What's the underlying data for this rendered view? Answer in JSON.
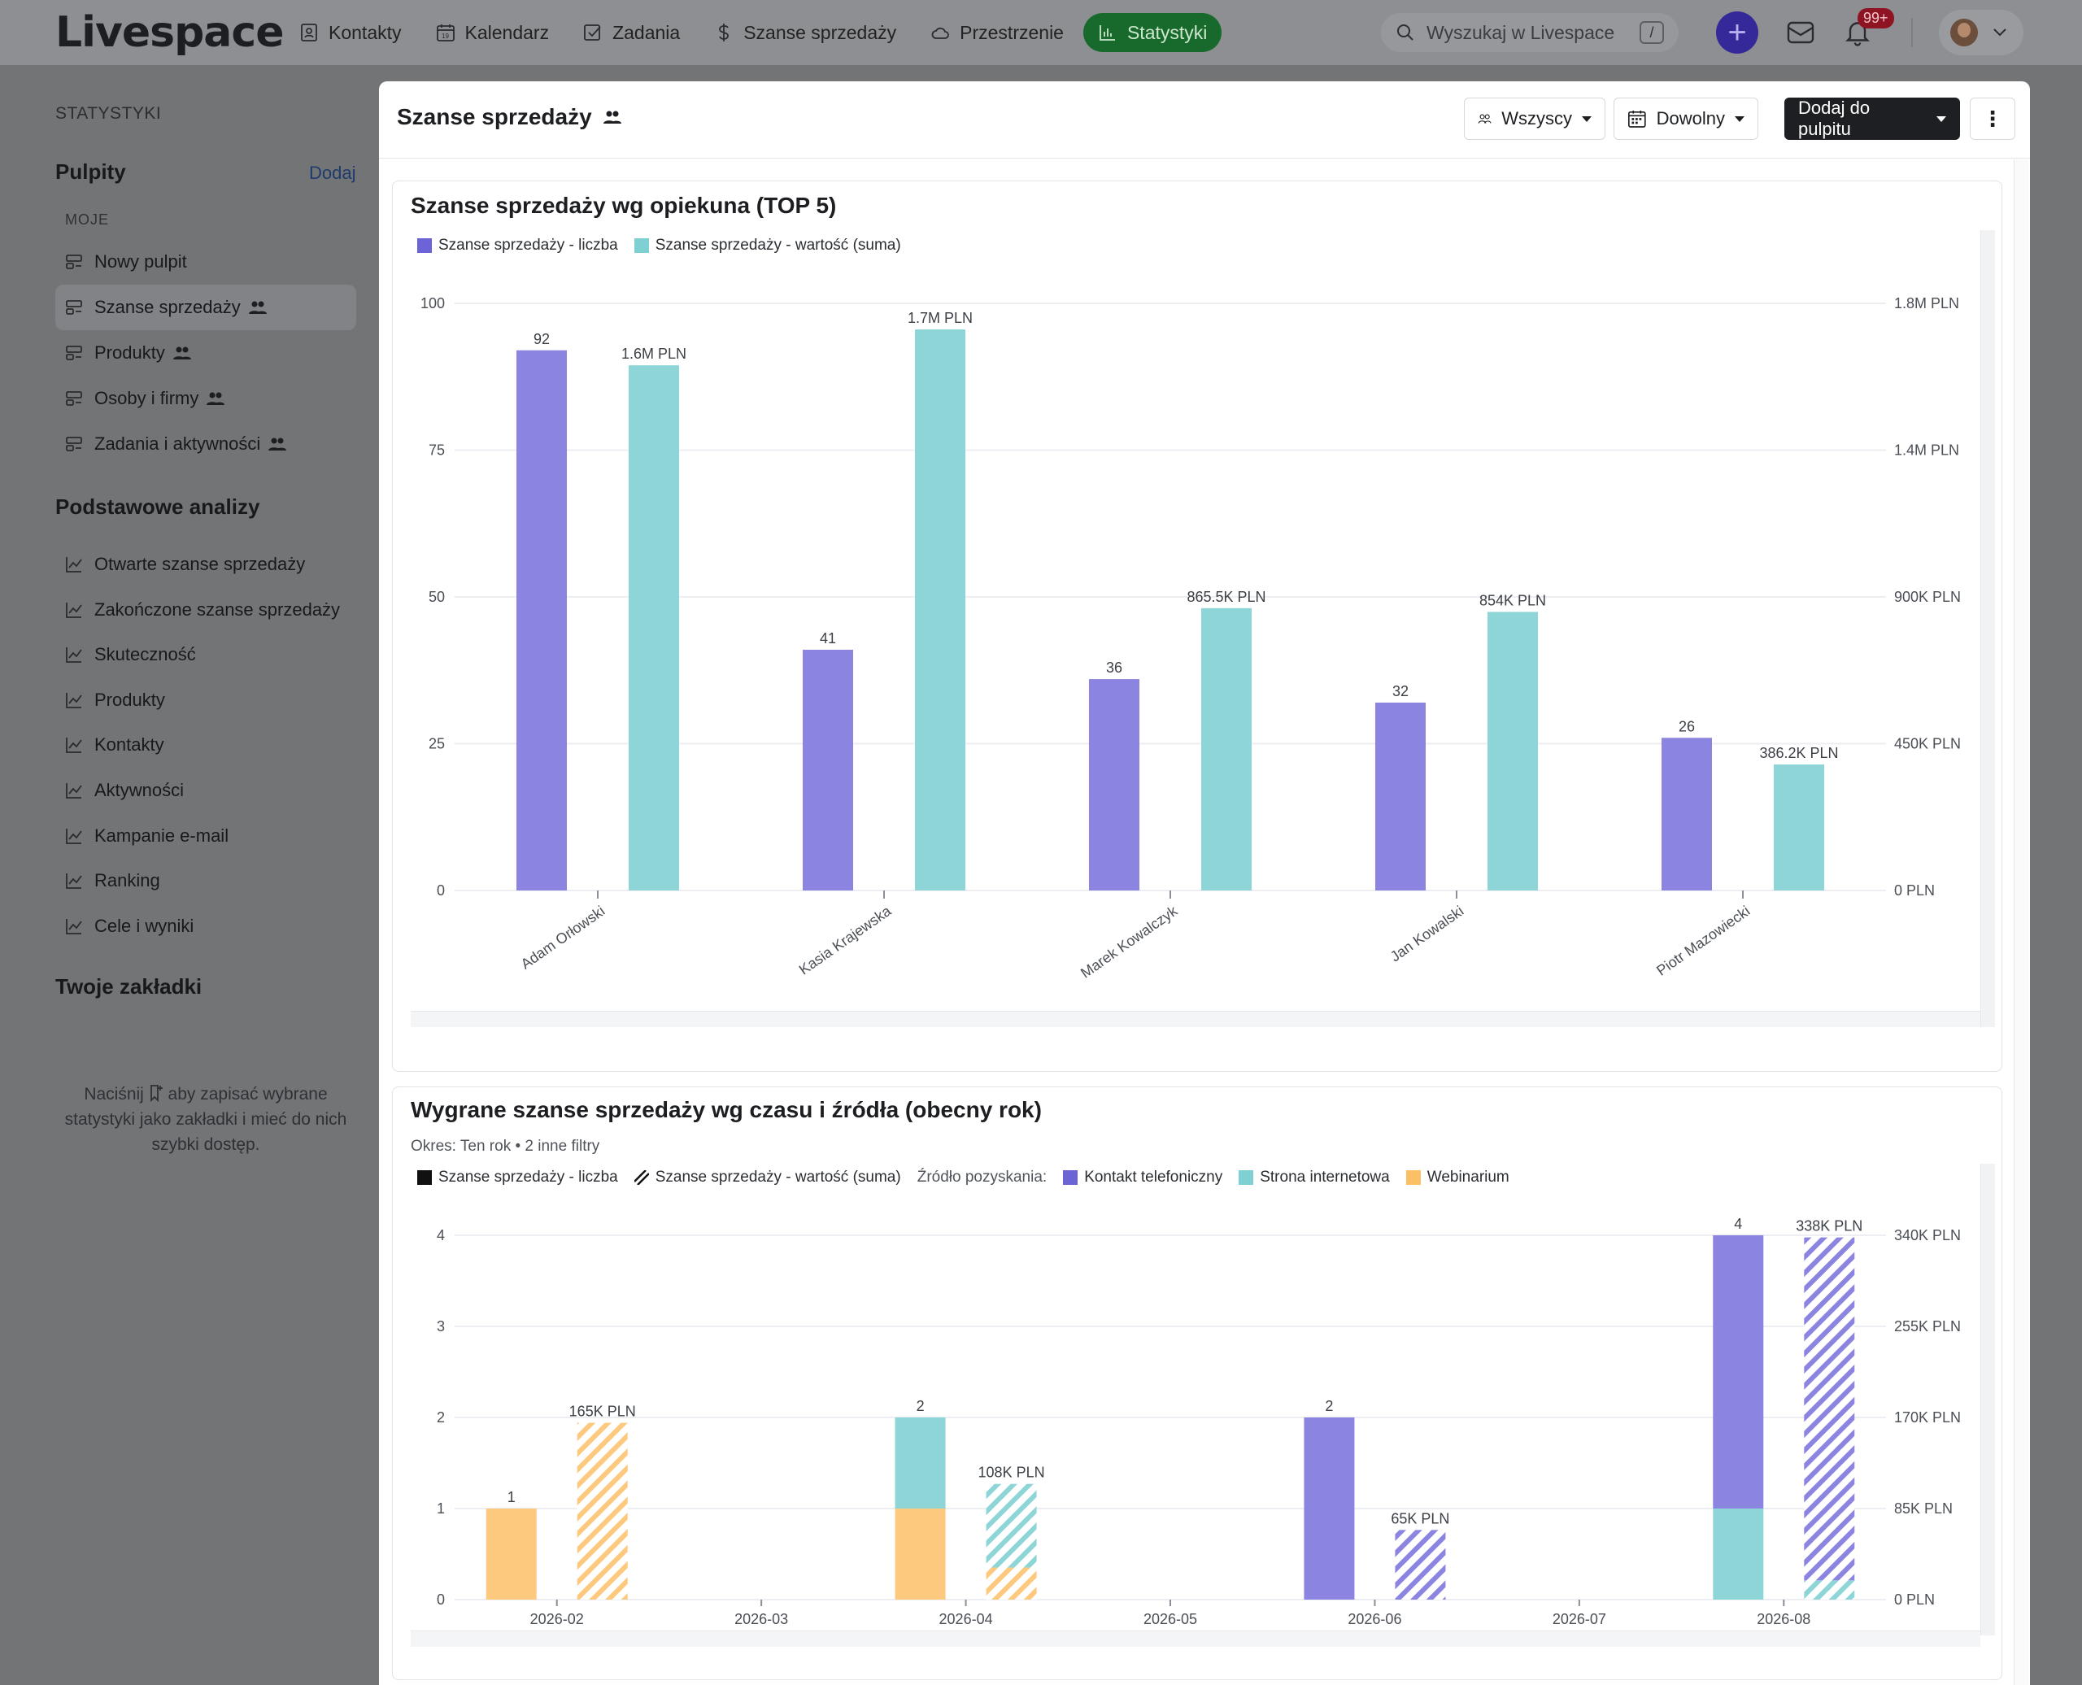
{
  "app": {
    "logo": "Livespace",
    "nav": [
      {
        "label": "Kontakty",
        "icon": "contact-icon"
      },
      {
        "label": "Kalendarz",
        "icon": "calendar-icon"
      },
      {
        "label": "Zadania",
        "icon": "tasks-icon"
      },
      {
        "label": "Szanse sprzedaży",
        "icon": "dollar-icon"
      },
      {
        "label": "Przestrzenie",
        "icon": "cloud-icon"
      },
      {
        "label": "Statystyki",
        "icon": "stats-icon",
        "active": true
      }
    ],
    "search_placeholder": "Wyszukaj w Livespace",
    "search_shortcut": "/",
    "notifications_badge": "99+"
  },
  "sidebar": {
    "section_label": "STATYSTYKI",
    "dashboards_heading": "Pulpity",
    "add_label": "Dodaj",
    "mine_label": "MOJE",
    "dashboards": [
      {
        "label": "Nowy pulpit",
        "shared": false
      },
      {
        "label": "Szanse sprzedaży",
        "shared": true,
        "active": true
      },
      {
        "label": "Produkty",
        "shared": true
      },
      {
        "label": "Osoby i firmy",
        "shared": true
      },
      {
        "label": "Zadania i aktywności",
        "shared": true
      }
    ],
    "basic_heading": "Podstawowe analizy",
    "basic_items": [
      "Otwarte szanse sprzedaży",
      "Zakończone szanse sprzedaży",
      "Skuteczność",
      "Produkty",
      "Kontakty",
      "Aktywności",
      "Kampanie e-mail",
      "Ranking",
      "Cele i wyniki"
    ],
    "bookmarks_heading": "Twoje zakładki",
    "bookmarks_note_before": "Naciśnij",
    "bookmarks_note_after": "aby zapisać wybrane statystyki jako zakładki i mieć do nich szybki dostęp."
  },
  "panel": {
    "title": "Szanse sprzedaży",
    "filter_people": "Wszyscy",
    "filter_period": "Dowolny",
    "add_to_dashboard": "Dodaj do pulpitu",
    "more": "⋮"
  },
  "colors": {
    "purple": "#8b84e0",
    "teal": "#8dd5d7",
    "orange": "#fdc97e",
    "grid": "#eceef1",
    "axis_text": "#4a4e55",
    "active_nav": "#176a2c"
  },
  "chart_data": [
    {
      "type": "bar",
      "title": "Szanse sprzedaży wg opiekuna (TOP 5)",
      "categories": [
        "Adam Orłowski",
        "Kasia Krajewska",
        "Marek Kowalczyk",
        "Jan Kowalski",
        "Piotr Mazowiecki"
      ],
      "series": [
        {
          "name": "Szanse sprzedaży - liczba",
          "axis": "left",
          "color": "#8b84e0",
          "values": [
            92,
            41,
            36,
            32,
            26
          ],
          "labels": [
            "92",
            "41",
            "36",
            "32",
            "26"
          ]
        },
        {
          "name": "Szanse sprzedaży - wartość (suma)",
          "axis": "right",
          "color": "#8dd5d7",
          "values": [
            1610000,
            1720000,
            865500,
            854000,
            386200
          ],
          "labels": [
            "1.6M PLN",
            "1.7M PLN",
            "865.5K PLN",
            "854K PLN",
            "386.2K PLN"
          ]
        }
      ],
      "ylim_left": [
        0,
        100
      ],
      "yticks_left": [
        "0",
        "25",
        "50",
        "75",
        "100"
      ],
      "ylim_right": [
        0,
        1800000
      ],
      "yticks_right": [
        "0 PLN",
        "450K PLN",
        "900K PLN",
        "1.4M PLN",
        "1.8M PLN"
      ],
      "legend": "top-left",
      "grid": true
    },
    {
      "type": "bar",
      "stacked": true,
      "title": "Wygrane szanse sprzedaży wg czasu i źródła (obecny rok)",
      "subtitle_period": "Okres: Ten rok",
      "subtitle_filters": "2 inne filtry",
      "legend_measures": [
        "Szanse sprzedaży - liczba",
        "Szanse sprzedaży - wartość (suma)"
      ],
      "legend_source_label": "Źródło pozyskania:",
      "categories": [
        "2026-02",
        "2026-03",
        "2026-04",
        "2026-05",
        "2026-06",
        "2026-07",
        "2026-08"
      ],
      "series": [
        {
          "name": "Kontakt telefoniczny",
          "color": "#8b84e0",
          "count": [
            0,
            0,
            0,
            0,
            2,
            0,
            3
          ],
          "value": [
            0,
            0,
            0,
            0,
            65000,
            0,
            320000
          ]
        },
        {
          "name": "Strona internetowa",
          "color": "#8dd5d7",
          "count": [
            0,
            0,
            1,
            0,
            0,
            0,
            1
          ],
          "value": [
            0,
            0,
            78000,
            0,
            0,
            0,
            18000
          ]
        },
        {
          "name": "Webinarium",
          "color": "#fdc97e",
          "count": [
            1,
            0,
            1,
            0,
            0,
            0,
            0
          ],
          "value": [
            165000,
            0,
            30000,
            0,
            0,
            0,
            0
          ]
        }
      ],
      "count_labels": [
        "1",
        "",
        "2",
        "",
        "2",
        "",
        "4"
      ],
      "value_labels": [
        "165K PLN",
        "",
        "108K PLN",
        "",
        "65K PLN",
        "",
        "338K PLN"
      ],
      "ylim_left": [
        0,
        4
      ],
      "yticks_left": [
        "0",
        "1",
        "2",
        "3",
        "4"
      ],
      "ylim_right": [
        0,
        340000
      ],
      "yticks_right": [
        "0 PLN",
        "85K PLN",
        "170K PLN",
        "255K PLN",
        "340K PLN"
      ],
      "grid": true
    }
  ]
}
